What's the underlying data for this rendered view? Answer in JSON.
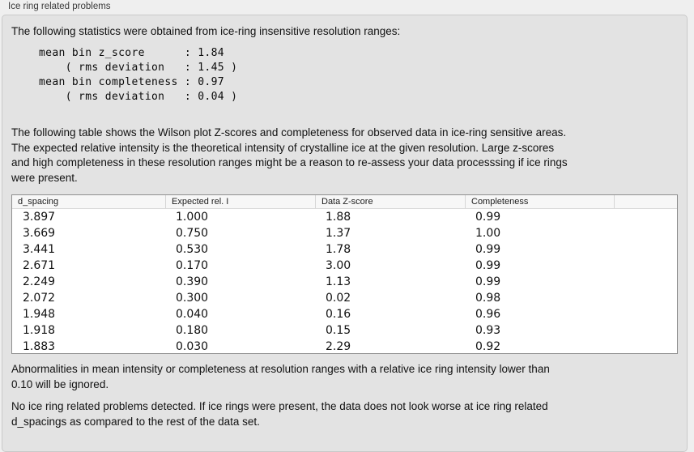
{
  "panel": {
    "title": "Ice ring related problems"
  },
  "intro": "The following statistics were obtained from ice-ring insensitive resolution ranges:",
  "stats": {
    "text": "mean bin z_score      : 1.84\n    ( rms deviation   : 1.45 )\nmean bin completeness : 0.97\n    ( rms deviation   : 0.04 )",
    "mean_bin_z_score": "1.84",
    "z_score_rms_deviation": "1.45",
    "mean_bin_completeness": "0.97",
    "completeness_rms_deviation": "0.04"
  },
  "table_description": "The following table shows the Wilson plot Z-scores and completeness for observed data in ice-ring sensitive areas.\nThe expected relative intensity is the theoretical intensity of crystalline ice at the given resolution. Large z-scores\nand high completeness in these resolution ranges might be a reason to re-assess your data processsing if ice rings\nwere present.",
  "table": {
    "columns": [
      "d_spacing",
      "Expected rel. I",
      "Data Z-score",
      "Completeness"
    ],
    "rows": [
      [
        "3.897",
        "1.000",
        "1.88",
        "0.99"
      ],
      [
        "3.669",
        "0.750",
        "1.37",
        "1.00"
      ],
      [
        "3.441",
        "0.530",
        "1.78",
        "0.99"
      ],
      [
        "2.671",
        "0.170",
        "3.00",
        "0.99"
      ],
      [
        "2.249",
        "0.390",
        "1.13",
        "0.99"
      ],
      [
        "2.072",
        "0.300",
        "0.02",
        "0.98"
      ],
      [
        "1.948",
        "0.040",
        "0.16",
        "0.96"
      ],
      [
        "1.918",
        "0.180",
        "0.15",
        "0.93"
      ],
      [
        "1.883",
        "0.030",
        "2.29",
        "0.92"
      ]
    ]
  },
  "ignore_note": "Abnormalities in mean intensity or completeness at resolution ranges with a relative ice ring intensity lower than\n0.10 will be ignored.",
  "conclusion": "No ice ring related problems detected. If ice rings were present, the data does not look worse at ice ring related\nd_spacings as compared to the rest of the data set."
}
